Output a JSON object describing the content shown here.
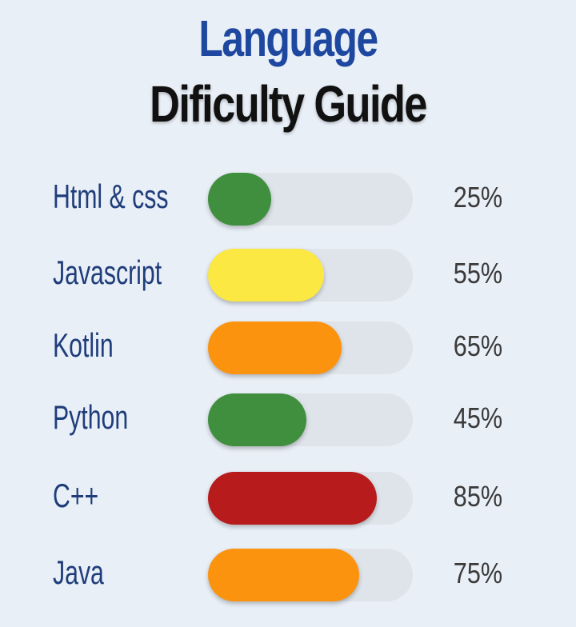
{
  "title_line1": "Language",
  "title_line2": "Dificulty Guide",
  "colors": {
    "title_blue": "#1e47a0",
    "title_black": "#111111",
    "label_blue": "#1f3d7a",
    "percent_gray": "#3a3a3a",
    "track": "#dfe4ea"
  },
  "chart_data": {
    "type": "bar",
    "orientation": "horizontal",
    "title": "Language Dificulty Guide",
    "categories": [
      "Html & css",
      "Javascript",
      "Kotlin",
      "Python",
      "C++",
      "Java"
    ],
    "values": [
      25,
      55,
      65,
      45,
      85,
      75
    ],
    "value_labels": [
      "25%",
      "55%",
      "65%",
      "45%",
      "85%",
      "75%"
    ],
    "bar_colors": [
      "#3f8f3f",
      "#fbe843",
      "#fb930f",
      "#3f8f3f",
      "#b81b1b",
      "#fb930f"
    ],
    "xlim": [
      0,
      100
    ],
    "grid": false,
    "legend": "none"
  }
}
